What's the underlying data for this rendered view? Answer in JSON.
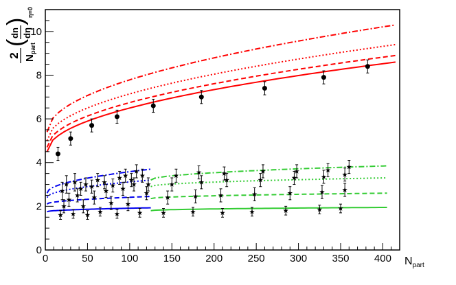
{
  "chart_data": {
    "type": "scatter",
    "title": "",
    "xlabel": {
      "main": "N",
      "sub": "part"
    },
    "ylabel": {
      "prefix": "2",
      "den_main": "N",
      "den_sub": "part",
      "num": "dn",
      "den": "dη",
      "sub": "η=0"
    },
    "xlim": [
      0,
      420
    ],
    "ylim": [
      0,
      11
    ],
    "x_ticks": [
      0,
      50,
      100,
      150,
      200,
      250,
      300,
      350,
      400
    ],
    "y_ticks": [
      0,
      2,
      4,
      6,
      8,
      10
    ],
    "grid": false,
    "colors": {
      "red": "#ff0000",
      "green": "#33cc33",
      "blue": "#0000ee",
      "points": "#000000"
    },
    "series": [
      {
        "kind": "curve",
        "color": "red",
        "style": "solid",
        "x0": 2,
        "x1": 415,
        "y0": 4.5,
        "y1": 8.6
      },
      {
        "kind": "curve",
        "color": "red",
        "style": "dashed",
        "x0": 2,
        "x1": 415,
        "y0": 4.7,
        "y1": 8.9
      },
      {
        "kind": "curve",
        "color": "red",
        "style": "dotted",
        "x0": 2,
        "x1": 415,
        "y0": 5.0,
        "y1": 9.4
      },
      {
        "kind": "curve",
        "color": "red",
        "style": "dashdot",
        "x0": 2,
        "x1": 415,
        "y0": 5.4,
        "y1": 10.3
      },
      {
        "kind": "curve",
        "color": "green",
        "style": "solid",
        "x0": 125,
        "x1": 405,
        "y0": 1.8,
        "y1": 1.95
      },
      {
        "kind": "curve",
        "color": "green",
        "style": "dashed",
        "x0": 125,
        "x1": 405,
        "y0": 2.35,
        "y1": 2.6
      },
      {
        "kind": "curve",
        "color": "green",
        "style": "dotted",
        "x0": 125,
        "x1": 405,
        "y0": 2.9,
        "y1": 3.3
      },
      {
        "kind": "curve",
        "color": "green",
        "style": "dashdot",
        "x0": 125,
        "x1": 405,
        "y0": 3.2,
        "y1": 3.85
      },
      {
        "kind": "curve",
        "color": "blue",
        "style": "solid",
        "x0": 2,
        "x1": 125,
        "y0": 1.75,
        "y1": 1.93
      },
      {
        "kind": "curve",
        "color": "blue",
        "style": "dashed",
        "x0": 2,
        "x1": 125,
        "y0": 2.1,
        "y1": 2.45
      },
      {
        "kind": "curve",
        "color": "blue",
        "style": "dotted",
        "x0": 2,
        "x1": 125,
        "y0": 2.4,
        "y1": 3.2
      },
      {
        "kind": "curve",
        "color": "blue",
        "style": "dashdot",
        "x0": 2,
        "x1": 125,
        "y0": 2.6,
        "y1": 3.7
      },
      {
        "kind": "points",
        "marker": "circle",
        "points": [
          [
            15,
            4.4,
            0.3
          ],
          [
            30,
            5.1,
            0.3
          ],
          [
            55,
            5.7,
            0.3
          ],
          [
            85,
            6.1,
            0.3
          ],
          [
            128,
            6.6,
            0.3
          ],
          [
            185,
            7.0,
            0.3
          ],
          [
            260,
            7.4,
            0.3
          ],
          [
            330,
            7.9,
            0.3
          ],
          [
            382,
            8.4,
            0.3
          ]
        ]
      },
      {
        "kind": "points",
        "marker": "star",
        "points": [
          [
            18,
            1.6,
            0.2
          ],
          [
            22,
            2.0,
            0.3
          ],
          [
            28,
            2.3,
            0.3
          ],
          [
            33,
            1.65,
            0.2
          ],
          [
            38,
            2.5,
            0.3
          ],
          [
            45,
            2.0,
            0.3
          ],
          [
            50,
            1.6,
            0.2
          ],
          [
            58,
            2.4,
            0.3
          ],
          [
            65,
            1.75,
            0.2
          ],
          [
            72,
            2.7,
            0.3
          ],
          [
            78,
            2.15,
            0.3
          ],
          [
            85,
            1.65,
            0.2
          ],
          [
            92,
            2.8,
            0.3
          ],
          [
            98,
            2.1,
            0.3
          ],
          [
            105,
            3.0,
            0.3
          ],
          [
            112,
            1.7,
            0.2
          ],
          [
            120,
            2.6,
            0.3
          ],
          [
            20,
            2.7,
            0.4
          ],
          [
            25,
            3.0,
            0.4
          ],
          [
            35,
            3.1,
            0.4
          ],
          [
            42,
            2.8,
            0.3
          ],
          [
            48,
            3.0,
            0.3
          ],
          [
            55,
            2.9,
            0.3
          ],
          [
            62,
            3.2,
            0.3
          ],
          [
            70,
            3.1,
            0.3
          ],
          [
            80,
            2.95,
            0.3
          ],
          [
            88,
            3.3,
            0.3
          ],
          [
            95,
            3.4,
            0.3
          ],
          [
            102,
            3.2,
            0.3
          ],
          [
            108,
            3.6,
            0.3
          ],
          [
            115,
            3.4,
            0.3
          ],
          [
            122,
            3.0,
            0.3
          ],
          [
            140,
            1.7,
            0.2
          ],
          [
            175,
            1.75,
            0.2
          ],
          [
            210,
            1.7,
            0.2
          ],
          [
            245,
            1.75,
            0.2
          ],
          [
            285,
            1.8,
            0.2
          ],
          [
            325,
            1.85,
            0.2
          ],
          [
            350,
            1.9,
            0.2
          ],
          [
            145,
            2.4,
            0.3
          ],
          [
            178,
            2.45,
            0.3
          ],
          [
            208,
            2.5,
            0.3
          ],
          [
            248,
            2.55,
            0.3
          ],
          [
            290,
            2.6,
            0.3
          ],
          [
            328,
            2.65,
            0.3
          ],
          [
            355,
            2.75,
            0.3
          ],
          [
            150,
            3.0,
            0.3
          ],
          [
            185,
            3.1,
            0.3
          ],
          [
            215,
            3.2,
            0.3
          ],
          [
            255,
            3.2,
            0.3
          ],
          [
            295,
            3.3,
            0.3
          ],
          [
            330,
            3.35,
            0.3
          ],
          [
            355,
            3.45,
            0.3
          ],
          [
            155,
            3.4,
            0.3
          ],
          [
            182,
            3.55,
            0.3
          ],
          [
            212,
            3.5,
            0.3
          ],
          [
            258,
            3.6,
            0.3
          ],
          [
            298,
            3.6,
            0.3
          ],
          [
            335,
            3.65,
            0.3
          ],
          [
            360,
            3.8,
            0.3
          ]
        ]
      }
    ]
  }
}
